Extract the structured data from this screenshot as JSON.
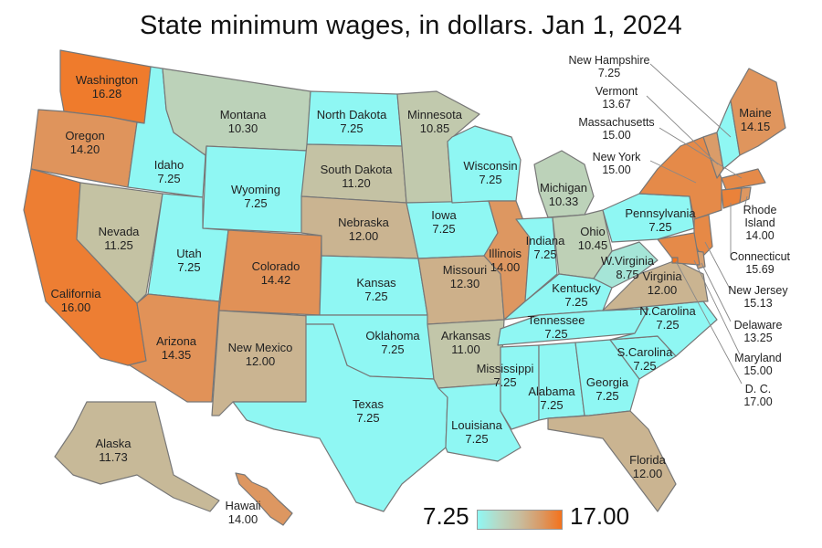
{
  "title": "State minimum wages, in dollars. Jan 1, 2024",
  "colors": {
    "low": "#8ff7f3",
    "mid_green": "#bfd0b6",
    "mid_tan": "#c9b593",
    "mid_orange": "#e0935a",
    "high": "#f4721c",
    "border": "#777777"
  },
  "legend": {
    "min": "7.25",
    "max": "17.00"
  },
  "states": {
    "WA": {
      "name": "Washington",
      "wage": "16.28"
    },
    "OR": {
      "name": "Oregon",
      "wage": "14.20"
    },
    "CA": {
      "name": "California",
      "wage": "16.00"
    },
    "ID": {
      "name": "Idaho",
      "wage": "7.25"
    },
    "NV": {
      "name": "Nevada",
      "wage": "11.25"
    },
    "MT": {
      "name": "Montana",
      "wage": "10.30"
    },
    "WY": {
      "name": "Wyoming",
      "wage": "7.25"
    },
    "UT": {
      "name": "Utah",
      "wage": "7.25"
    },
    "AZ": {
      "name": "Arizona",
      "wage": "14.35"
    },
    "CO": {
      "name": "Colorado",
      "wage": "14.42"
    },
    "NM": {
      "name": "New Mexico",
      "wage": "12.00"
    },
    "ND": {
      "name": "North Dakota",
      "wage": "7.25"
    },
    "SD": {
      "name": "South Dakota",
      "wage": "11.20"
    },
    "NE": {
      "name": "Nebraska",
      "wage": "12.00"
    },
    "KS": {
      "name": "Kansas",
      "wage": "7.25"
    },
    "OK": {
      "name": "Oklahoma",
      "wage": "7.25"
    },
    "TX": {
      "name": "Texas",
      "wage": "7.25"
    },
    "MN": {
      "name": "Minnesota",
      "wage": "10.85"
    },
    "IA": {
      "name": "Iowa",
      "wage": "7.25"
    },
    "MO": {
      "name": "Missouri",
      "wage": "12.30"
    },
    "AR": {
      "name": "Arkansas",
      "wage": "11.00"
    },
    "LA": {
      "name": "Louisiana",
      "wage": "7.25"
    },
    "WI": {
      "name": "Wisconsin",
      "wage": "7.25"
    },
    "IL": {
      "name": "Illinois",
      "wage": "14.00"
    },
    "MI": {
      "name": "Michigan",
      "wage": "10.33"
    },
    "IN": {
      "name": "Indiana",
      "wage": "7.25"
    },
    "OH": {
      "name": "Ohio",
      "wage": "10.45"
    },
    "KY": {
      "name": "Kentucky",
      "wage": "7.25"
    },
    "TN": {
      "name": "Tennessee",
      "wage": "7.25"
    },
    "MS": {
      "name": "Mississippi",
      "wage": "7.25"
    },
    "AL": {
      "name": "Alabama",
      "wage": "7.25"
    },
    "GA": {
      "name": "Georgia",
      "wage": "7.25"
    },
    "FL": {
      "name": "Florida",
      "wage": "12.00"
    },
    "SC": {
      "name": "S.Carolina",
      "wage": "7.25"
    },
    "NC": {
      "name": "N.Carolina",
      "wage": "7.25"
    },
    "VA": {
      "name": "Virginia",
      "wage": "12.00"
    },
    "WV": {
      "name": "W.Virginia",
      "wage": "8.75"
    },
    "PA": {
      "name": "Pennsylvania",
      "wage": "7.25"
    },
    "NY": {
      "name": "New York",
      "wage": "15.00"
    },
    "ME": {
      "name": "Maine",
      "wage": "14.15"
    },
    "AK": {
      "name": "Alaska",
      "wage": "11.73"
    },
    "HI": {
      "name": "Hawaii",
      "wage": "14.00"
    },
    "NH": {
      "name": "New Hampshire",
      "wage": "7.25"
    },
    "VT": {
      "name": "Vermont",
      "wage": "13.67"
    },
    "MA": {
      "name": "Massachusetts",
      "wage": "15.00"
    },
    "RI": {
      "name": "Rhode Island",
      "wage": "14.00"
    },
    "CT": {
      "name": "Connecticut",
      "wage": "15.69"
    },
    "NJ": {
      "name": "New Jersey",
      "wage": "15.13"
    },
    "DE": {
      "name": "Delaware",
      "wage": "13.25"
    },
    "MD": {
      "name": "Maryland",
      "wage": "15.00"
    },
    "DC": {
      "name": "D. C.",
      "wage": "17.00"
    }
  }
}
